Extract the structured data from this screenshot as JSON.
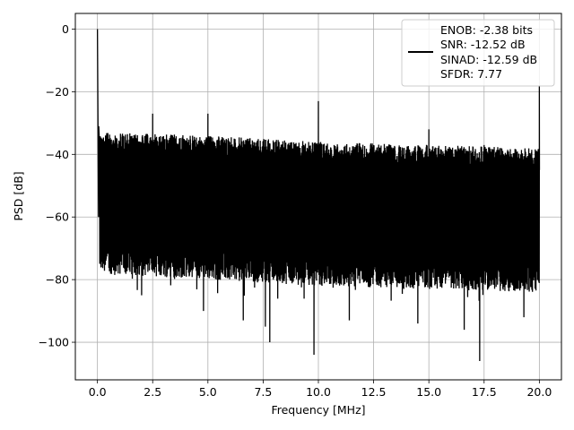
{
  "chart_data": {
    "type": "line",
    "title": "",
    "xlabel": "Frequency [MHz]",
    "ylabel": "PSD [dB]",
    "xlim": [
      -1.0,
      21.0
    ],
    "ylim": [
      -112,
      5
    ],
    "xticks": [
      0.0,
      2.5,
      5.0,
      7.5,
      10.0,
      12.5,
      15.0,
      17.5,
      20.0
    ],
    "xtick_labels": [
      "0.0",
      "2.5",
      "5.0",
      "7.5",
      "10.0",
      "12.5",
      "15.0",
      "17.5",
      "20.0"
    ],
    "yticks": [
      0,
      -20,
      -40,
      -60,
      -80,
      -100
    ],
    "ytick_labels": [
      "0",
      "−20",
      "−40",
      "−60",
      "−80",
      "−100"
    ],
    "grid": true,
    "legend_position": "top-right",
    "line_color": "#000000",
    "series": [
      {
        "name": "ENOB: -2.38 bits\nSNR: -12.52 dB\nSINAD: -12.59 dB\nSFDR: 7.77",
        "description_points": {
          "x": [
            0.0,
            0.02,
            0.05,
            0.1,
            2.5,
            5.0,
            7.5,
            10.0,
            12.5,
            15.0,
            17.5,
            20.0
          ],
          "y": [
            0,
            -24,
            -31,
            -33,
            -27,
            -27,
            -36,
            -23,
            -37,
            -32,
            -37,
            -18
          ]
        },
        "upper_envelope": {
          "x": [
            0.1,
            5.0,
            10.0,
            15.0,
            20.0
          ],
          "y": [
            -33,
            -34,
            -36,
            -37,
            -38
          ]
        },
        "lower_envelope": {
          "x": [
            0.1,
            5.0,
            10.0,
            15.0,
            20.0
          ],
          "y": [
            -78,
            -80,
            -82,
            -83,
            -84
          ]
        },
        "deep_dips": {
          "x": [
            2.0,
            4.8,
            6.6,
            7.6,
            7.8,
            9.8,
            11.4,
            14.5,
            16.6,
            17.3,
            19.3
          ],
          "y": [
            -85,
            -90,
            -93,
            -95,
            -100,
            -104,
            -93,
            -94,
            -96,
            -106,
            -92
          ]
        }
      }
    ]
  },
  "legend": {
    "lines": [
      "ENOB: -2.38 bits",
      "SNR: -12.52 dB",
      "SINAD: -12.59 dB",
      "SFDR: 7.77"
    ]
  }
}
